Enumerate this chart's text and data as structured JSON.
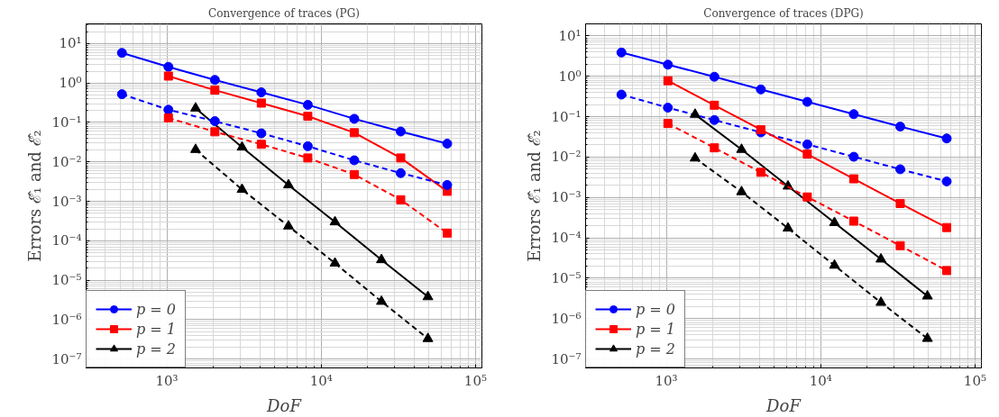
{
  "chart_data": [
    {
      "type": "line",
      "title": "Convergence of traces (PG)",
      "xlabel": "DoF",
      "ylabel": "Errors ℰ̂₁ and ℰ̂₂",
      "log": "xy",
      "grid": true,
      "legend": "bottom left",
      "xlim": [
        300,
        110000
      ],
      "ylim": [
        6e-08,
        31.6
      ],
      "xticks": [
        {
          "value": 1000,
          "label": "10³"
        },
        {
          "value": 10000,
          "label": "10⁴"
        },
        {
          "value": 100000,
          "label": "10⁵"
        }
      ],
      "yticks": [
        {
          "value": 1e-07,
          "label": "10⁻⁷"
        },
        {
          "value": 1e-06,
          "label": "10⁻⁶"
        },
        {
          "value": 1e-05,
          "label": "10⁻⁵"
        },
        {
          "value": 0.0001,
          "label": "10⁻⁴"
        },
        {
          "value": 0.001,
          "label": "10⁻³"
        },
        {
          "value": 0.01,
          "label": "10⁻²"
        },
        {
          "value": 0.1,
          "label": "10⁻¹"
        },
        {
          "value": 1,
          "label": "10⁰"
        },
        {
          "value": 10,
          "label": "10¹"
        }
      ],
      "series": [
        {
          "name": "p = 0",
          "color": "#0000ff",
          "marker": "circle",
          "line_style": "solid",
          "x": [
            512,
            1024,
            2048,
            4096,
            8192,
            16384,
            32768,
            65536
          ],
          "values": [
            5.8,
            2.57,
            1.2,
            0.58,
            0.28,
            0.124,
            0.059,
            0.029
          ]
        },
        {
          "name": "p = 1",
          "color": "#ff0000",
          "marker": "square",
          "line_style": "solid",
          "x": [
            1024,
            2048,
            4096,
            8192,
            16384,
            32768,
            65536
          ],
          "values": [
            1.5,
            0.66,
            0.31,
            0.144,
            0.055,
            0.0126,
            0.0018
          ]
        },
        {
          "name": "p = 2",
          "color": "#000000",
          "marker": "triangle",
          "line_style": "solid",
          "x": [
            1536,
            3072,
            6144,
            12288,
            24576,
            49152
          ],
          "values": [
            0.23,
            0.0236,
            0.0026,
            0.0003,
            3.3e-05,
            3.8e-06
          ]
        },
        {
          "color": "#0000ff",
          "marker": "circle",
          "line_style": "dashed",
          "x": [
            512,
            1024,
            2048,
            4096,
            8192,
            16384,
            32768,
            65536
          ],
          "values": [
            0.52,
            0.21,
            0.108,
            0.053,
            0.025,
            0.011,
            0.0052,
            0.0026
          ]
        },
        {
          "color": "#ff0000",
          "marker": "square",
          "line_style": "dashed",
          "x": [
            1024,
            2048,
            4096,
            8192,
            16384,
            32768,
            65536
          ],
          "values": [
            0.13,
            0.058,
            0.028,
            0.0126,
            0.0048,
            0.0011,
            0.000157
          ]
        },
        {
          "color": "#000000",
          "marker": "triangle",
          "line_style": "dashed",
          "x": [
            1536,
            3072,
            6144,
            12288,
            24576,
            49152
          ],
          "values": [
            0.0205,
            0.002,
            0.000235,
            2.7e-05,
            2.9e-06,
            3.3e-07
          ]
        }
      ]
    },
    {
      "type": "line",
      "title": "Convergence of traces (DPG)",
      "xlabel": "DoF",
      "ylabel": "Errors ℰ̂₁ and ℰ̂₂",
      "log": "xy",
      "grid": true,
      "legend": "bottom left",
      "xlim": [
        300,
        110000
      ],
      "ylim": [
        6e-08,
        20
      ],
      "xticks": [
        {
          "value": 1000,
          "label": "10³"
        },
        {
          "value": 10000,
          "label": "10⁴"
        },
        {
          "value": 100000,
          "label": "10⁵"
        }
      ],
      "yticks": [
        {
          "value": 1e-07,
          "label": "10⁻⁷"
        },
        {
          "value": 1e-06,
          "label": "10⁻⁶"
        },
        {
          "value": 1e-05,
          "label": "10⁻⁵"
        },
        {
          "value": 0.0001,
          "label": "10⁻⁴"
        },
        {
          "value": 0.001,
          "label": "10⁻³"
        },
        {
          "value": 0.01,
          "label": "10⁻²"
        },
        {
          "value": 0.1,
          "label": "10⁻¹"
        },
        {
          "value": 1,
          "label": "10⁰"
        },
        {
          "value": 10,
          "label": "10¹"
        }
      ],
      "series": [
        {
          "color": "#0000ff",
          "marker": "circle",
          "line_style": "dashed",
          "x": [
            512,
            1024,
            2048,
            4096,
            8192,
            16384,
            32768,
            65536
          ],
          "values": [
            0.354,
            0.168,
            0.083,
            0.041,
            0.0207,
            0.0102,
            0.005,
            0.0025
          ]
        },
        {
          "name": "p = 0",
          "color": "#0000ff",
          "marker": "circle",
          "line_style": "solid",
          "x": [
            512,
            1024,
            2048,
            4096,
            8192,
            16384,
            32768,
            65536
          ],
          "values": [
            3.9,
            1.95,
            0.98,
            0.475,
            0.234,
            0.116,
            0.057,
            0.029
          ]
        },
        {
          "name": "p = 1",
          "color": "#ff0000",
          "marker": "square",
          "line_style": "solid",
          "x": [
            1024,
            2048,
            4096,
            8192,
            16384,
            32768,
            65536
          ],
          "values": [
            0.78,
            0.193,
            0.048,
            0.0119,
            0.0029,
            0.00071,
            0.00018
          ]
        },
        {
          "name": "p = 2",
          "color": "#000000",
          "marker": "triangle",
          "line_style": "solid",
          "x": [
            1536,
            3072,
            6144,
            12288,
            24576,
            49152
          ],
          "values": [
            0.114,
            0.0154,
            0.0019,
            0.000237,
            2.96e-05,
            3.6e-06
          ]
        },
        {
          "color": "#ff0000",
          "marker": "square",
          "line_style": "dashed",
          "x": [
            1024,
            2048,
            4096,
            8192,
            16384,
            32768,
            65536
          ],
          "values": [
            0.068,
            0.017,
            0.0042,
            0.00103,
            0.00026,
            6.4e-05,
            1.55e-05
          ]
        },
        {
          "color": "#000000",
          "marker": "triangle",
          "line_style": "dashed",
          "x": [
            1536,
            3072,
            6144,
            12288,
            24576,
            49152
          ],
          "values": [
            0.0094,
            0.00138,
            0.000173,
            2.08e-05,
            2.5e-06,
            3.2e-07
          ]
        }
      ]
    }
  ]
}
